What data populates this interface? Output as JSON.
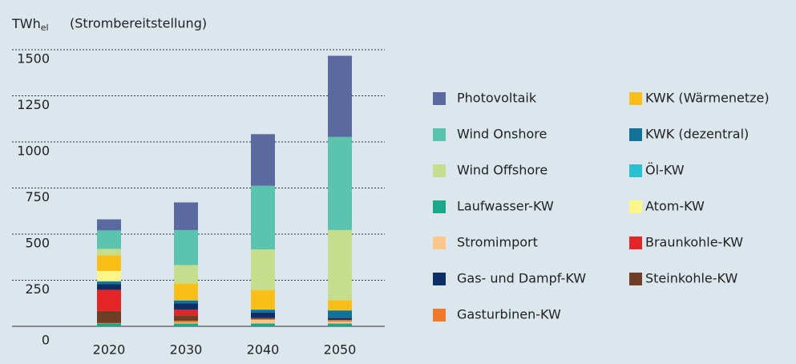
{
  "chart_data": {
    "type": "stacked_bar",
    "unit": "TWh",
    "unit_sub": "el",
    "subtitle": "(Strombereitstellung)",
    "categories": [
      "2020",
      "2030",
      "2040",
      "2050"
    ],
    "series": [
      {
        "name": "Photovoltaik",
        "color": "#5a6aa0",
        "values": [
          60,
          150,
          280,
          440
        ]
      },
      {
        "name": "Wind Onshore",
        "color": "#5cc4ae",
        "values": [
          100,
          190,
          345,
          505
        ]
      },
      {
        "name": "Wind Offshore",
        "color": "#c6dd8e",
        "values": [
          35,
          100,
          220,
          380
        ]
      },
      {
        "name": "Laufwasser-KW",
        "color": "#1aa88a",
        "values": [
          15,
          15,
          15,
          15
        ]
      },
      {
        "name": "Stromimport",
        "color": "#fdc68a",
        "values": [
          0,
          5,
          20,
          10
        ]
      },
      {
        "name": "Gas- und Dampf-KW",
        "color": "#0d2f66",
        "values": [
          30,
          35,
          30,
          10
        ]
      },
      {
        "name": "Gasturbinen-KW",
        "color": "#f07a2a",
        "values": [
          3,
          10,
          5,
          10
        ]
      },
      {
        "name": "KWK (Wärmenetze)",
        "color": "#fbbf1a",
        "values": [
          85,
          90,
          105,
          55
        ]
      },
      {
        "name": "KWK (dezentral)",
        "color": "#137096",
        "values": [
          15,
          15,
          15,
          40
        ]
      },
      {
        "name": "Öl-KW",
        "color": "#2bbfd2",
        "values": [
          2,
          2,
          2,
          2
        ]
      },
      {
        "name": "Atom-KW",
        "color": "#fff68a",
        "values": [
          55,
          0,
          0,
          0
        ]
      },
      {
        "name": "Braunkohle-KW",
        "color": "#e52428",
        "values": [
          115,
          30,
          0,
          0
        ]
      },
      {
        "name": "Steinkohle-KW",
        "color": "#6f3e24",
        "values": [
          65,
          30,
          5,
          0
        ]
      }
    ],
    "ylim": [
      0,
      1600
    ],
    "yticks": [
      0,
      250,
      500,
      750,
      1000,
      1250,
      1500
    ],
    "grid": true
  }
}
